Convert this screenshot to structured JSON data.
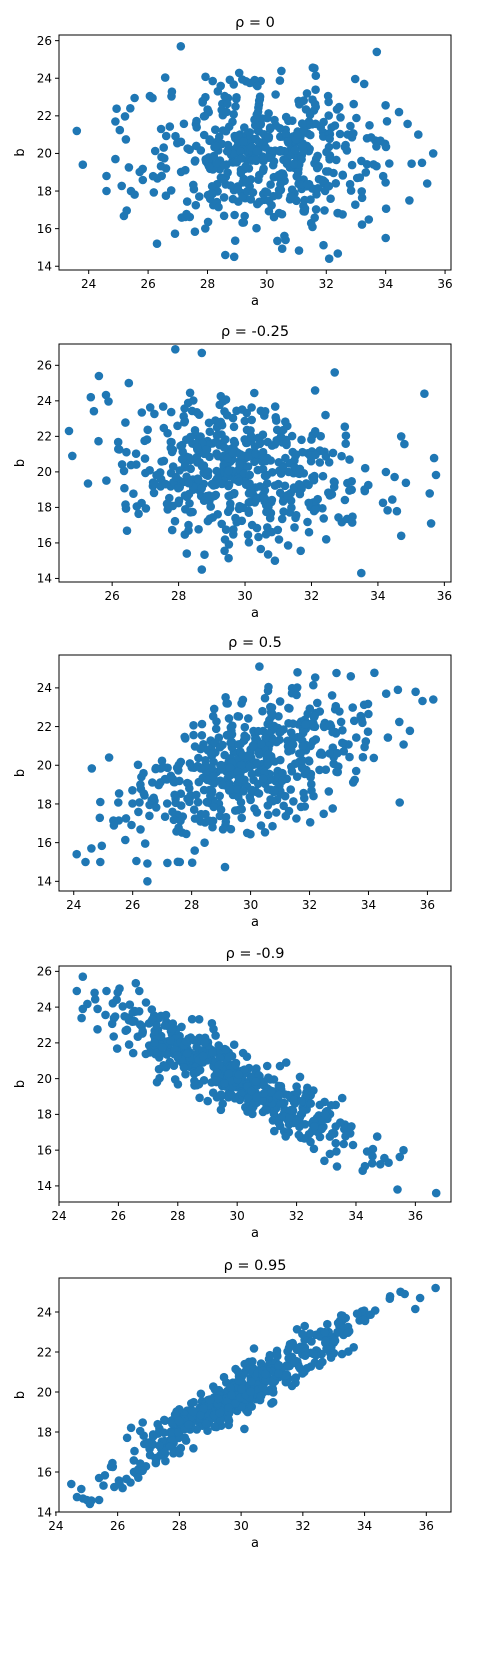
{
  "chart_data": [
    {
      "type": "scatter",
      "title": "ρ = 0",
      "xlabel": "a",
      "ylabel": "b",
      "correlation": 0,
      "xlim": [
        23.0,
        36.2
      ],
      "ylim": [
        13.8,
        26.3
      ],
      "xticks": [
        24,
        26,
        28,
        30,
        32,
        34,
        36
      ],
      "yticks": [
        14,
        16,
        18,
        20,
        22,
        24,
        26
      ],
      "marker_color": "#1f77b4",
      "grid": false,
      "x_mean": 30,
      "x_sd": 2.0,
      "y_mean": 20,
      "y_sd": 2.0,
      "n_points": 500,
      "extreme_points": [
        [
          23.6,
          21.2
        ],
        [
          23.8,
          19.4
        ],
        [
          24.6,
          18.8
        ],
        [
          24.6,
          18.0
        ],
        [
          24.9,
          19.7
        ],
        [
          24.9,
          21.7
        ],
        [
          25.4,
          22.4
        ],
        [
          27.1,
          25.7
        ],
        [
          26.3,
          15.2
        ],
        [
          28.6,
          14.6
        ],
        [
          28.9,
          14.5
        ],
        [
          32.1,
          14.4
        ],
        [
          33.7,
          25.4
        ],
        [
          34.0,
          15.5
        ],
        [
          34.8,
          17.5
        ],
        [
          35.1,
          21.0
        ],
        [
          35.4,
          18.4
        ],
        [
          35.6,
          20.0
        ]
      ]
    },
    {
      "type": "scatter",
      "title": "ρ = -0.25",
      "xlabel": "a",
      "ylabel": "b",
      "correlation": -0.25,
      "xlim": [
        24.4,
        36.2
      ],
      "ylim": [
        13.8,
        27.2
      ],
      "xticks": [
        26,
        28,
        30,
        32,
        34,
        36
      ],
      "yticks": [
        14,
        16,
        18,
        20,
        22,
        24,
        26
      ],
      "marker_color": "#1f77b4",
      "grid": false,
      "x_mean": 30,
      "x_sd": 2.0,
      "y_mean": 20,
      "y_sd": 2.0,
      "n_points": 500,
      "extreme_points": [
        [
          24.7,
          22.3
        ],
        [
          24.8,
          20.9
        ],
        [
          25.6,
          25.4
        ],
        [
          26.5,
          25.0
        ],
        [
          27.9,
          26.9
        ],
        [
          28.7,
          26.7
        ],
        [
          28.7,
          14.5
        ],
        [
          30.9,
          15.0
        ],
        [
          32.7,
          25.6
        ],
        [
          33.5,
          14.3
        ],
        [
          34.7,
          16.4
        ],
        [
          34.7,
          22.0
        ],
        [
          35.4,
          24.4
        ],
        [
          35.6,
          17.1
        ]
      ]
    },
    {
      "type": "scatter",
      "title": "ρ = 0.5",
      "xlabel": "a",
      "ylabel": "b",
      "correlation": 0.5,
      "xlim": [
        23.5,
        36.8
      ],
      "ylim": [
        13.5,
        25.7
      ],
      "xticks": [
        24,
        26,
        28,
        30,
        32,
        34,
        36
      ],
      "yticks": [
        14,
        16,
        18,
        20,
        22,
        24
      ],
      "marker_color": "#1f77b4",
      "grid": false,
      "x_mean": 30,
      "x_sd": 2.0,
      "y_mean": 20,
      "y_sd": 2.0,
      "n_points": 500,
      "extreme_points": [
        [
          24.1,
          15.4
        ],
        [
          24.4,
          15.0
        ],
        [
          24.6,
          15.7
        ],
        [
          24.9,
          15.0
        ],
        [
          24.9,
          18.1
        ],
        [
          25.2,
          20.4
        ],
        [
          26.5,
          14.0
        ],
        [
          27.6,
          15.0
        ],
        [
          30.3,
          25.1
        ],
        [
          33.4,
          24.6
        ],
        [
          34.6,
          23.7
        ],
        [
          35.0,
          23.9
        ],
        [
          35.6,
          23.8
        ],
        [
          36.2,
          23.4
        ]
      ]
    },
    {
      "type": "scatter",
      "title": "ρ = -0.9",
      "xlabel": "a",
      "ylabel": "b",
      "correlation": -0.9,
      "xlim": [
        24.0,
        37.2
      ],
      "ylim": [
        13.1,
        26.3
      ],
      "xticks": [
        24,
        26,
        28,
        30,
        32,
        34,
        36
      ],
      "yticks": [
        14,
        16,
        18,
        20,
        22,
        24,
        26
      ],
      "marker_color": "#1f77b4",
      "grid": false,
      "x_mean": 30,
      "x_sd": 2.0,
      "y_mean": 20,
      "y_sd": 2.0,
      "n_points": 500,
      "extreme_points": [
        [
          24.6,
          24.9
        ],
        [
          24.8,
          25.7
        ],
        [
          24.8,
          23.9
        ],
        [
          25.2,
          24.8
        ],
        [
          25.6,
          24.9
        ],
        [
          25.3,
          23.9
        ],
        [
          27.3,
          19.8
        ],
        [
          34.3,
          15.1
        ],
        [
          35.1,
          15.3
        ],
        [
          35.4,
          13.8
        ],
        [
          35.6,
          16.0
        ],
        [
          36.7,
          13.6
        ]
      ]
    },
    {
      "type": "scatter",
      "title": "ρ = 0.95",
      "xlabel": "a",
      "ylabel": "b",
      "correlation": 0.95,
      "xlim": [
        24.1,
        36.8
      ],
      "ylim": [
        14.0,
        25.7
      ],
      "xticks": [
        24,
        26,
        28,
        30,
        32,
        34,
        36
      ],
      "yticks": [
        14,
        16,
        18,
        20,
        22,
        24
      ],
      "marker_color": "#1f77b4",
      "grid": false,
      "x_mean": 30,
      "x_sd": 2.0,
      "y_mean": 20,
      "y_sd": 2.0,
      "n_points": 500,
      "extreme_points": [
        [
          24.5,
          15.4
        ],
        [
          25.0,
          14.6
        ],
        [
          25.1,
          14.4
        ],
        [
          25.4,
          14.6
        ],
        [
          25.4,
          15.7
        ],
        [
          35.3,
          24.9
        ],
        [
          35.8,
          24.7
        ],
        [
          36.3,
          25.2
        ]
      ]
    }
  ]
}
